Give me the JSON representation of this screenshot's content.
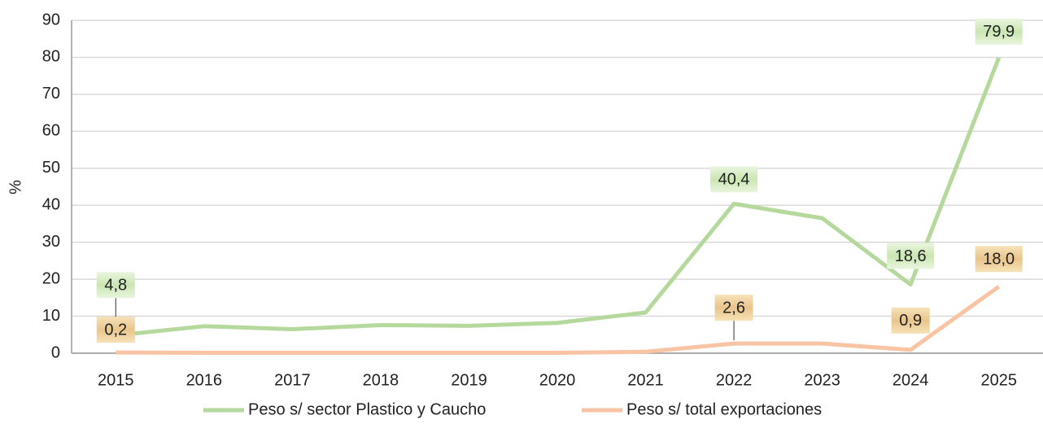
{
  "chart_data": {
    "type": "line",
    "y_label": "%",
    "categories": [
      "2015",
      "2016",
      "2017",
      "2018",
      "2019",
      "2020",
      "2021",
      "2022",
      "2023",
      "2024",
      "2025"
    ],
    "series": [
      {
        "name": "Peso s/ sector Plastico y Caucho",
        "color": "#b5d99c",
        "values": [
          4.8,
          7.3,
          6.5,
          7.6,
          7.4,
          8.2,
          11,
          40.4,
          36.5,
          18.6,
          79.9
        ],
        "value_labels": [
          "4,8",
          null,
          null,
          null,
          null,
          null,
          null,
          "40,4",
          null,
          "18,6",
          "79,9"
        ]
      },
      {
        "name": "Peso s/ total exportaciones",
        "color": "#f8c4a4",
        "values": [
          0.2,
          0.1,
          0.1,
          0.1,
          0.1,
          0.1,
          0.4,
          2.6,
          2.6,
          0.9,
          18.0
        ],
        "value_labels": [
          "0,2",
          null,
          null,
          null,
          null,
          null,
          null,
          "2,6",
          null,
          "0,9",
          "18,0"
        ]
      }
    ],
    "ylim": [
      0,
      90
    ],
    "yticks": [
      0,
      10,
      20,
      30,
      40,
      50,
      60,
      70,
      80,
      90
    ],
    "grid": true
  }
}
